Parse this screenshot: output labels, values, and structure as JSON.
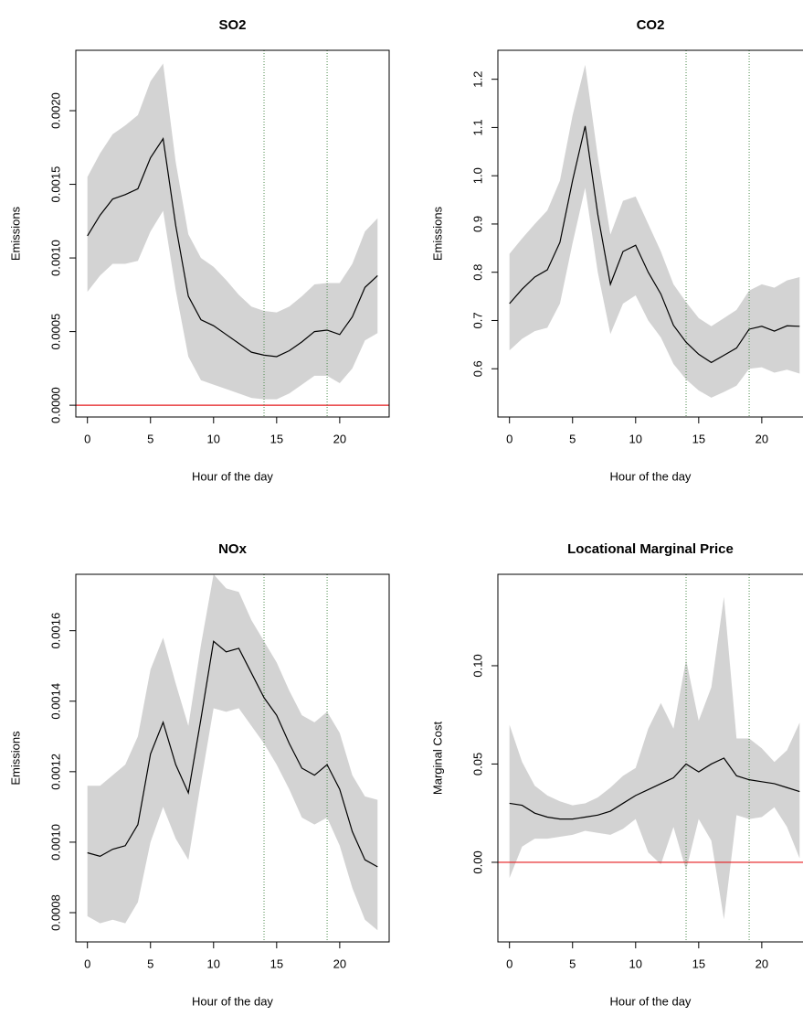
{
  "chart_data": [
    {
      "type": "line",
      "title": "SO2",
      "xlabel": "Hour of the day",
      "ylabel": "Emissions",
      "x": [
        0,
        1,
        2,
        3,
        4,
        5,
        6,
        7,
        8,
        9,
        10,
        11,
        12,
        13,
        14,
        15,
        16,
        17,
        18,
        19,
        20,
        21,
        22,
        23
      ],
      "values": [
        0.00115,
        0.00129,
        0.0014,
        0.00143,
        0.00147,
        0.00168,
        0.00181,
        0.00122,
        0.00074,
        0.00058,
        0.00054,
        0.00048,
        0.00042,
        0.00036,
        0.00034,
        0.00033,
        0.00037,
        0.00043,
        0.0005,
        0.00051,
        0.00048,
        0.0006,
        0.0008,
        0.00088
      ],
      "lower": [
        0.00077,
        0.00088,
        0.00096,
        0.00096,
        0.00098,
        0.00118,
        0.00132,
        0.00078,
        0.00033,
        0.00017,
        0.00014,
        0.00011,
        8e-05,
        5e-05,
        4e-05,
        4e-05,
        8e-05,
        0.00014,
        0.0002,
        0.0002,
        0.00015,
        0.00025,
        0.00044,
        0.00049
      ],
      "upper": [
        0.00155,
        0.00171,
        0.00184,
        0.0019,
        0.00197,
        0.0022,
        0.00232,
        0.00165,
        0.00116,
        0.001,
        0.00094,
        0.00085,
        0.00075,
        0.00067,
        0.00064,
        0.00063,
        0.00067,
        0.00074,
        0.00082,
        0.00083,
        0.00083,
        0.00096,
        0.00118,
        0.00127
      ],
      "color": "#000000",
      "band_color": "#d3d3d3",
      "xlim": [
        -0.92,
        23.92
      ],
      "ylim": [
        -8e-05,
        0.00241
      ],
      "xticks": [
        0,
        5,
        10,
        15,
        20
      ],
      "yticks": [
        {
          "value": 0,
          "label": "0.0000"
        },
        0.0005,
        {
          "value": 0.001,
          "label": "0.0010"
        },
        0.0015,
        {
          "value": 0.002,
          "label": "0.0020"
        }
      ],
      "vlines": [
        14,
        19
      ],
      "hline": 0
    },
    {
      "type": "line",
      "title": "CO2",
      "xlabel": "Hour of the day",
      "ylabel": "Emissions",
      "x": [
        0,
        1,
        2,
        3,
        4,
        5,
        6,
        7,
        8,
        9,
        10,
        11,
        12,
        13,
        14,
        15,
        16,
        17,
        18,
        19,
        20,
        21,
        22,
        23
      ],
      "values": [
        0.735,
        0.765,
        0.79,
        0.805,
        0.862,
        0.99,
        1.103,
        0.92,
        0.775,
        0.843,
        0.856,
        0.8,
        0.755,
        0.69,
        0.655,
        0.63,
        0.613,
        0.628,
        0.643,
        0.682,
        0.688,
        0.678,
        0.689,
        0.688
      ],
      "lower": [
        0.638,
        0.662,
        0.678,
        0.685,
        0.735,
        0.86,
        0.975,
        0.8,
        0.672,
        0.735,
        0.752,
        0.7,
        0.665,
        0.61,
        0.578,
        0.555,
        0.54,
        0.552,
        0.565,
        0.6,
        0.603,
        0.592,
        0.598,
        0.59
      ],
      "upper": [
        0.838,
        0.87,
        0.9,
        0.928,
        0.99,
        1.125,
        1.23,
        1.04,
        0.878,
        0.948,
        0.957,
        0.9,
        0.843,
        0.775,
        0.738,
        0.705,
        0.688,
        0.705,
        0.722,
        0.762,
        0.775,
        0.768,
        0.783,
        0.79
      ],
      "color": "#000000",
      "band_color": "#d3d3d3",
      "xlim": [
        -0.92,
        23.92
      ],
      "ylim": [
        0.5,
        1.26
      ],
      "xticks": [
        0,
        5,
        10,
        15,
        20
      ],
      "yticks": [
        0.6,
        0.7,
        0.8,
        0.9,
        {
          "value": 1,
          "label": "1.0"
        },
        1.1,
        1.2
      ],
      "vlines": [
        14,
        19
      ]
    },
    {
      "type": "line",
      "title": "NOx",
      "xlabel": "Hour of the day",
      "ylabel": "Emissions",
      "x": [
        0,
        1,
        2,
        3,
        4,
        5,
        6,
        7,
        8,
        9,
        10,
        11,
        12,
        13,
        14,
        15,
        16,
        17,
        18,
        19,
        20,
        21,
        22,
        23
      ],
      "values": [
        0.00097,
        0.00096,
        0.00098,
        0.00099,
        0.00105,
        0.00125,
        0.00134,
        0.00122,
        0.00114,
        0.00135,
        0.00157,
        0.00154,
        0.00155,
        0.00148,
        0.00141,
        0.00136,
        0.00128,
        0.00121,
        0.00119,
        0.00122,
        0.00115,
        0.00103,
        0.00095,
        0.00093
      ],
      "lower": [
        0.00079,
        0.00077,
        0.00078,
        0.00077,
        0.00083,
        0.001,
        0.0011,
        0.00101,
        0.00095,
        0.00117,
        0.00138,
        0.00137,
        0.00138,
        0.00133,
        0.00128,
        0.00122,
        0.00115,
        0.00107,
        0.00105,
        0.00107,
        0.00099,
        0.00087,
        0.00078,
        0.00075
      ],
      "upper": [
        0.00116,
        0.00116,
        0.00119,
        0.00122,
        0.0013,
        0.00149,
        0.00158,
        0.00145,
        0.00133,
        0.00156,
        0.00176,
        0.00172,
        0.00171,
        0.00163,
        0.00157,
        0.00151,
        0.00143,
        0.00136,
        0.00134,
        0.00137,
        0.00131,
        0.00119,
        0.00113,
        0.00112
      ],
      "color": "#000000",
      "band_color": "#d3d3d3",
      "xlim": [
        -0.92,
        23.92
      ],
      "ylim": [
        0.000717,
        0.00176
      ],
      "xticks": [
        0,
        5,
        10,
        15,
        20
      ],
      "yticks": [
        0.0008,
        {
          "value": 0.001,
          "label": "0.0010"
        },
        0.0012,
        0.0014,
        0.0016
      ],
      "vlines": [
        14,
        19
      ]
    },
    {
      "type": "line",
      "title": "Locational Marginal Price",
      "xlabel": "Hour of the day",
      "ylabel": "Marginal Cost",
      "x": [
        0,
        1,
        2,
        3,
        4,
        5,
        6,
        7,
        8,
        9,
        10,
        11,
        12,
        13,
        14,
        15,
        16,
        17,
        18,
        19,
        20,
        21,
        22,
        23
      ],
      "values": [
        0.03,
        0.029,
        0.025,
        0.023,
        0.022,
        0.022,
        0.023,
        0.024,
        0.026,
        0.03,
        0.034,
        0.037,
        0.04,
        0.043,
        0.05,
        0.046,
        0.05,
        0.053,
        0.044,
        0.042,
        0.041,
        0.04,
        0.038,
        0.036
      ],
      "lower": [
        -0.008,
        0.008,
        0.012,
        0.012,
        0.013,
        0.014,
        0.016,
        0.015,
        0.014,
        0.017,
        0.022,
        0.005,
        -0.001,
        0.018,
        -0.004,
        0.022,
        0.011,
        -0.029,
        0.024,
        0.022,
        0.023,
        0.028,
        0.018,
        0.002
      ],
      "upper": [
        0.07,
        0.051,
        0.039,
        0.034,
        0.031,
        0.029,
        0.03,
        0.033,
        0.038,
        0.044,
        0.048,
        0.068,
        0.081,
        0.068,
        0.103,
        0.072,
        0.089,
        0.135,
        0.063,
        0.063,
        0.058,
        0.051,
        0.057,
        0.071
      ],
      "color": "#000000",
      "band_color": "#d3d3d3",
      "xlim": [
        -0.92,
        23.92
      ],
      "ylim": [
        -0.0405,
        0.1465
      ],
      "xticks": [
        0,
        5,
        10,
        15,
        20
      ],
      "yticks": [
        {
          "value": 0,
          "label": "0.00"
        },
        0.05,
        {
          "value": 0.1,
          "label": "0.10"
        }
      ],
      "vlines": [
        14,
        19
      ],
      "hline": 0
    }
  ]
}
